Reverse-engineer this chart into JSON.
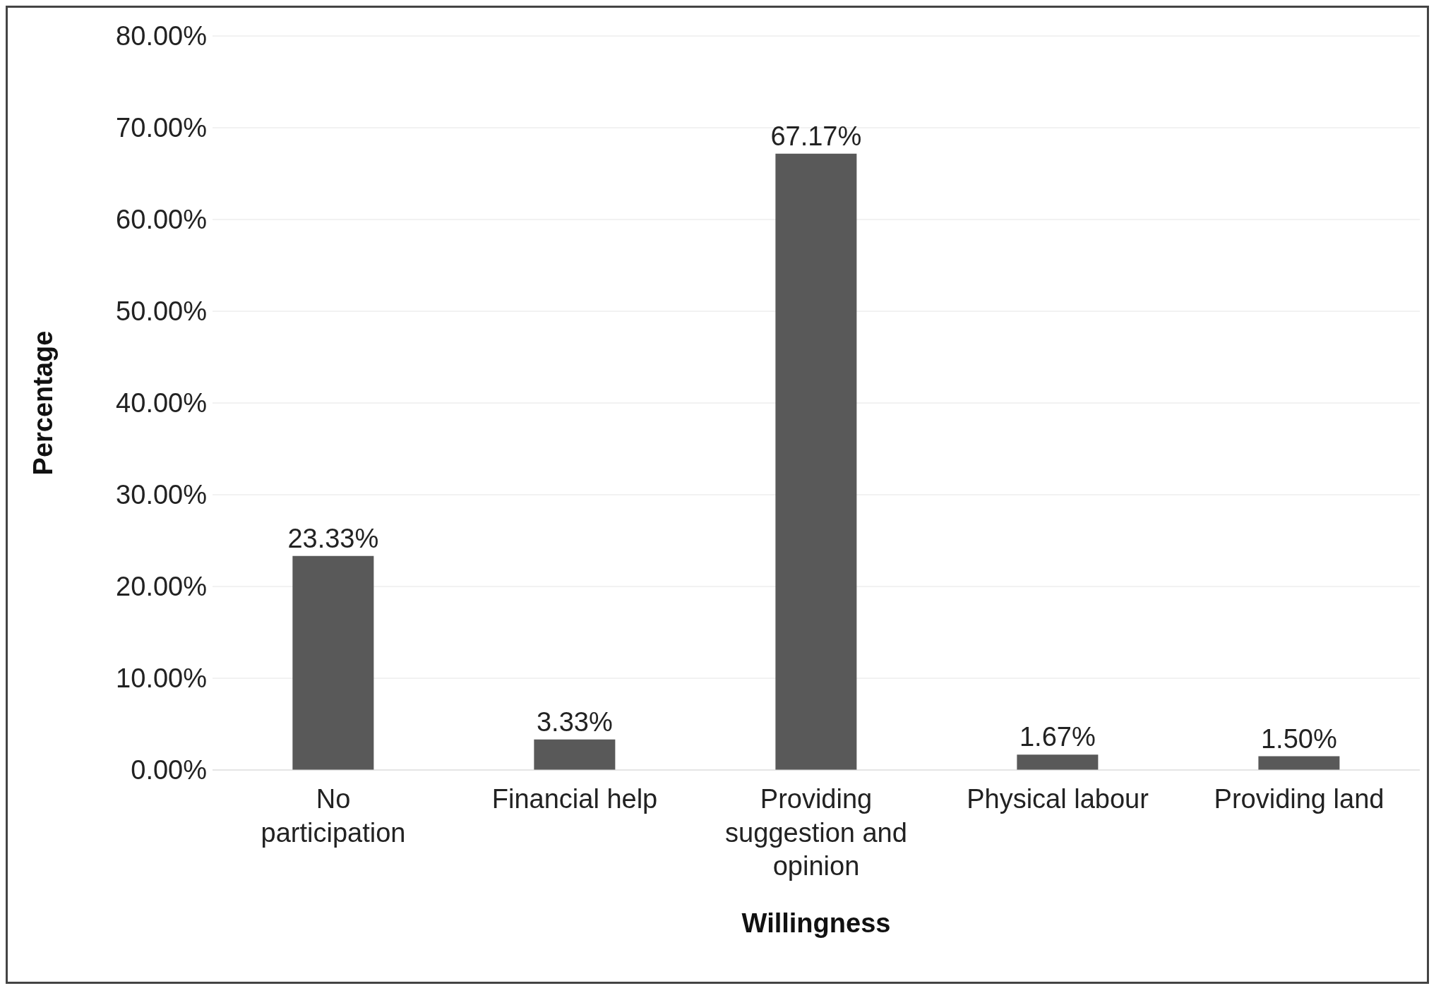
{
  "chart_data": {
    "type": "bar",
    "xlabel": "Willingness",
    "ylabel": "Percentage",
    "categories": [
      "No participation",
      "Financial help",
      "Providing suggestion and opinion",
      "Physical labour",
      "Providing land"
    ],
    "values": [
      23.33,
      3.33,
      67.17,
      1.67,
      1.5
    ],
    "value_labels": [
      "23.33%",
      "3.33%",
      "67.17%",
      "1.67%",
      "1.50%"
    ],
    "color": "#595959",
    "ylim": [
      0,
      80
    ],
    "yticks": [
      {
        "value": 0,
        "label": "0.00%"
      },
      {
        "value": 10,
        "label": "10.00%"
      },
      {
        "value": 20,
        "label": "20.00%"
      },
      {
        "value": 30,
        "label": "30.00%"
      },
      {
        "value": 40,
        "label": "40.00%"
      },
      {
        "value": 50,
        "label": "50.00%"
      },
      {
        "value": 60,
        "label": "60.00%"
      },
      {
        "value": 70,
        "label": "70.00%"
      },
      {
        "value": 80,
        "label": "80.00%"
      }
    ],
    "grid": "y",
    "legend": false
  }
}
